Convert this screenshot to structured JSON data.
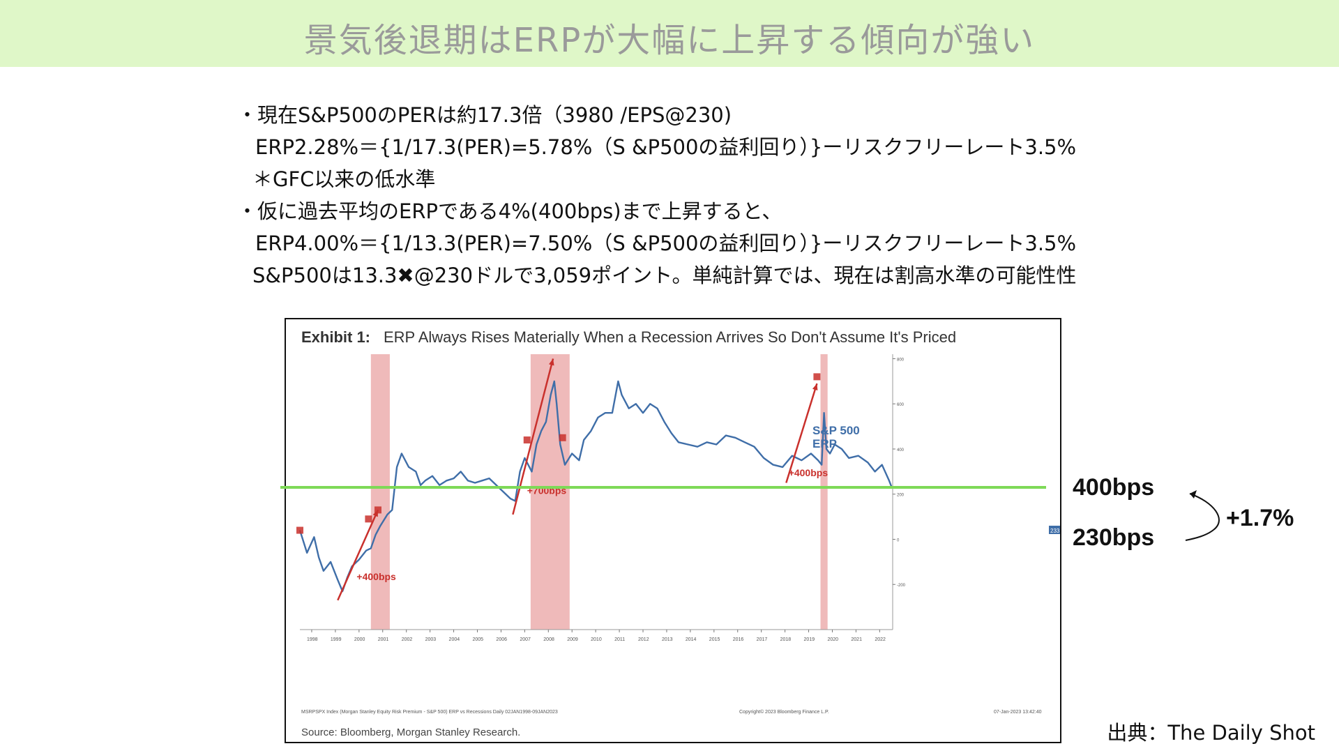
{
  "banner": {
    "title": "景気後退期はERPが大幅に上昇する傾向が強い"
  },
  "bullets": [
    "・現在S&P500のPERは約17.3倍（3980 /EPS@230)",
    "ERP2.28%＝{1/17.3(PER)=5.78%（S &P500の益利回り）}ーリスクフリーレート3.5%",
    "＊GFC以来の低水準",
    "・仮に過去平均のERPである4%(400bps)まで上昇すると、",
    "ERP4.00%＝{1/13.3(PER)=7.50%（S &P500の益利回り）}ーリスクフリーレート3.5%",
    "S&P500は13.3✖@230ドルで3,059ポイント。単純計算では、現在は割高水準の可能性性"
  ],
  "exhibit": {
    "label": "Exhibit 1:",
    "title": "ERP Always Rises Materially When a Recession Arrives So Don't Assume It's Priced",
    "series_label_line1": "S&P 500",
    "series_label_line2": "ERP",
    "footer_left": "MSRPSPX Index (Morgan Stanley Equity Risk Premium - S&P 500) ERP vs Recessions  Daily 02JAN1998-09JAN2023",
    "footer_mid": "Copyright© 2023 Bloomberg Finance L.P.",
    "footer_right": "07-Jan-2023 13:42:40",
    "source": "Source: Bloomberg, Morgan Stanley Research.",
    "last_value_badge": "233.3"
  },
  "annotations": {
    "level_high": "400bps",
    "level_low": "230bps",
    "diff": "+1.7%"
  },
  "source_credit": "出典：The Daily Shot",
  "colors": {
    "banner_bg": "#dff7c8",
    "line": "#3f6ea8",
    "recession": "#e9a3a3",
    "arrow": "#c9302c",
    "highlight": "#7ed957"
  },
  "chart_data": {
    "type": "line",
    "title": "ERP Always Rises Materially When a Recession Arrives So Don't Assume It's Priced",
    "x_ticks": [
      "1998",
      "1999",
      "2000",
      "2001",
      "2002",
      "2003",
      "2004",
      "2005",
      "2006",
      "2007",
      "2008",
      "2009",
      "2010",
      "2011",
      "2012",
      "2013",
      "2014",
      "2015",
      "2016",
      "2017",
      "2018",
      "2019",
      "2020",
      "2021",
      "2022"
    ],
    "y_ticks": [
      800,
      600,
      400,
      200,
      0,
      -200
    ],
    "ylim": [
      -400,
      820
    ],
    "xlim": [
      1998.0,
      2023.05
    ],
    "series": [
      {
        "name": "S&P 500 ERP",
        "x": [
          1998.0,
          1998.3,
          1998.6,
          1998.8,
          1999.0,
          1999.3,
          1999.6,
          1999.8,
          2000.0,
          2000.2,
          2000.5,
          2000.8,
          2001.0,
          2001.2,
          2001.4,
          2001.7,
          2001.9,
          2002.1,
          2002.3,
          2002.6,
          2002.9,
          2003.1,
          2003.3,
          2003.6,
          2003.9,
          2004.2,
          2004.5,
          2004.8,
          2005.1,
          2005.4,
          2005.7,
          2006.0,
          2006.3,
          2006.6,
          2006.9,
          2007.1,
          2007.3,
          2007.5,
          2007.8,
          2008.0,
          2008.2,
          2008.4,
          2008.6,
          2008.75,
          2008.85,
          2009.0,
          2009.2,
          2009.5,
          2009.8,
          2010.0,
          2010.3,
          2010.6,
          2010.9,
          2011.2,
          2011.45,
          2011.6,
          2011.9,
          2012.2,
          2012.5,
          2012.8,
          2013.1,
          2013.4,
          2013.7,
          2014.0,
          2014.4,
          2014.8,
          2015.2,
          2015.6,
          2016.0,
          2016.4,
          2016.8,
          2017.2,
          2017.6,
          2018.0,
          2018.4,
          2018.8,
          2019.2,
          2019.6,
          2019.9,
          2020.05,
          2020.15,
          2020.25,
          2020.4,
          2020.6,
          2020.9,
          2021.2,
          2021.6,
          2022.0,
          2022.3,
          2022.6,
          2022.9,
          2023.0
        ],
        "y": [
          40,
          -60,
          10,
          -80,
          -140,
          -100,
          -180,
          -230,
          -170,
          -120,
          -90,
          -50,
          -40,
          20,
          60,
          110,
          130,
          320,
          380,
          320,
          300,
          240,
          260,
          280,
          240,
          260,
          270,
          300,
          260,
          250,
          260,
          270,
          240,
          210,
          180,
          170,
          300,
          360,
          300,
          420,
          480,
          520,
          640,
          700,
          600,
          420,
          330,
          380,
          350,
          440,
          480,
          540,
          560,
          560,
          700,
          640,
          580,
          600,
          560,
          600,
          580,
          520,
          470,
          430,
          420,
          410,
          430,
          420,
          460,
          450,
          430,
          410,
          360,
          330,
          320,
          370,
          350,
          380,
          350,
          330,
          560,
          400,
          380,
          420,
          400,
          360,
          370,
          340,
          300,
          330,
          260,
          233
        ]
      }
    ],
    "recessions": [
      [
        2001.0,
        2001.8
      ],
      [
        2007.75,
        2009.4
      ],
      [
        2020.0,
        2020.3
      ]
    ],
    "reference_line": {
      "value": 400,
      "label": "400bps"
    },
    "arrows": [
      {
        "from": [
          1999.6,
          -270
        ],
        "to": [
          2001.3,
          130
        ],
        "label": "+400bps"
      },
      {
        "from": [
          2007.0,
          110
        ],
        "to": [
          2008.7,
          800
        ],
        "label": "+700bps"
      },
      {
        "from": [
          2018.55,
          250
        ],
        "to": [
          2019.85,
          690
        ],
        "label": "+400bps"
      }
    ],
    "markers": [
      [
        1998.0,
        40
      ],
      [
        2000.9,
        90
      ],
      [
        2001.3,
        130
      ],
      [
        2007.6,
        440
      ],
      [
        2009.1,
        450
      ],
      [
        2019.85,
        720
      ]
    ]
  }
}
